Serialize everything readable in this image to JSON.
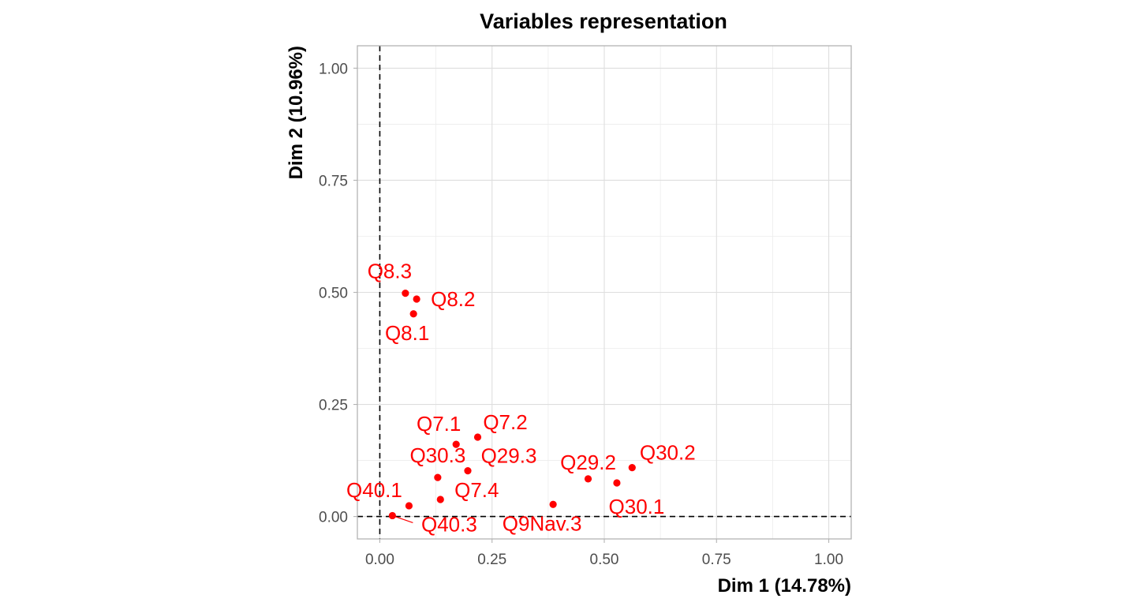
{
  "chart_data": {
    "type": "scatter",
    "title": "Variables representation",
    "xlabel": "Dim 1 (14.78%)",
    "ylabel": "Dim 2 (10.96%)",
    "xlim": [
      -0.05,
      1.05
    ],
    "ylim": [
      -0.05,
      1.05
    ],
    "x_ticks": [
      "0.00",
      "0.25",
      "0.50",
      "0.75",
      "1.00"
    ],
    "y_ticks": [
      "0.00",
      "0.25",
      "0.50",
      "0.75",
      "1.00"
    ],
    "grid": true,
    "reference_lines": {
      "x": 0,
      "y": 0,
      "style": "dashed"
    },
    "point_color": "#ff0000",
    "points": [
      {
        "label": "Q8.3",
        "x": 0.057,
        "y": 0.498
      },
      {
        "label": "Q8.2",
        "x": 0.082,
        "y": 0.485
      },
      {
        "label": "Q8.1",
        "x": 0.075,
        "y": 0.452
      },
      {
        "label": "Q7.1",
        "x": 0.17,
        "y": 0.161
      },
      {
        "label": "Q7.2",
        "x": 0.218,
        "y": 0.177
      },
      {
        "label": "Q30.3",
        "x": 0.129,
        "y": 0.087
      },
      {
        "label": "Q29.3",
        "x": 0.196,
        "y": 0.102
      },
      {
        "label": "Q7.4",
        "x": 0.135,
        "y": 0.038
      },
      {
        "label": "Q40.1",
        "x": 0.065,
        "y": 0.024
      },
      {
        "label": "Q40.3",
        "x": 0.028,
        "y": 0.002
      },
      {
        "label": "Q9Nav.3",
        "x": 0.386,
        "y": 0.027
      },
      {
        "label": "Q29.2",
        "x": 0.464,
        "y": 0.084
      },
      {
        "label": "Q30.1",
        "x": 0.528,
        "y": 0.075
      },
      {
        "label": "Q30.2",
        "x": 0.562,
        "y": 0.109
      }
    ]
  }
}
